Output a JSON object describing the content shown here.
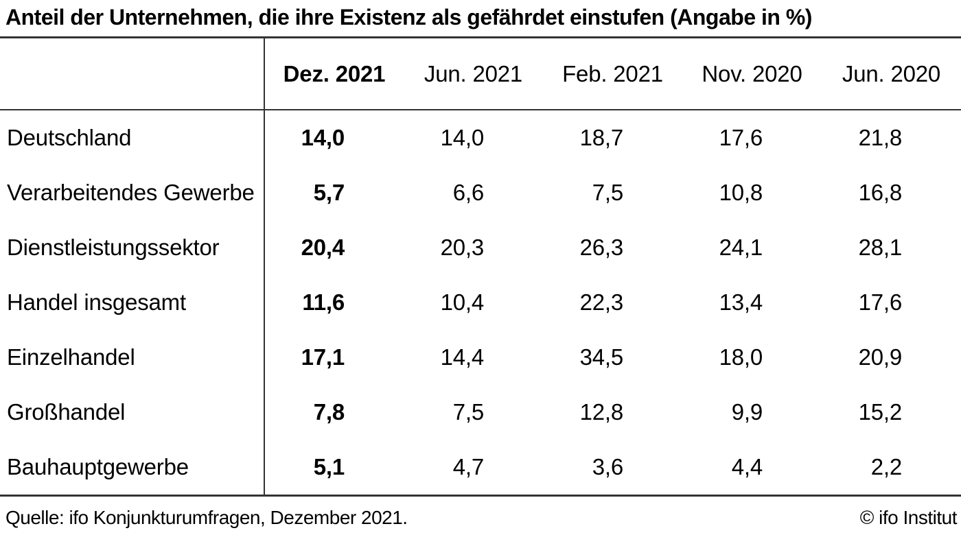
{
  "title": "Anteil der Unternehmen, die ihre Existenz als gefährdet einstufen (Angabe in %)",
  "colors": {
    "background": "#ffffff",
    "text": "#000000",
    "rule": "#333333"
  },
  "table": {
    "emphasized_column": "Dez. 2021",
    "columns": [
      "Dez. 2021",
      "Jun. 2021",
      "Feb. 2021",
      "Nov. 2020",
      "Jun. 2020"
    ],
    "rows": [
      {
        "label": "Deutschland",
        "values": [
          "14,0",
          "14,0",
          "18,7",
          "17,6",
          "21,8"
        ]
      },
      {
        "label": "Verarbeitendes Gewerbe",
        "values": [
          "5,7",
          "6,6",
          "7,5",
          "10,8",
          "16,8"
        ]
      },
      {
        "label": "Dienstleistungssektor",
        "values": [
          "20,4",
          "20,3",
          "26,3",
          "24,1",
          "28,1"
        ]
      },
      {
        "label": "Handel insgesamt",
        "values": [
          "11,6",
          "10,4",
          "22,3",
          "13,4",
          "17,6"
        ]
      },
      {
        "label": "Einzelhandel",
        "values": [
          "17,1",
          "14,4",
          "34,5",
          "18,0",
          "20,9"
        ]
      },
      {
        "label": "Großhandel",
        "values": [
          "7,8",
          "7,5",
          "12,8",
          "9,9",
          "15,2"
        ]
      },
      {
        "label": "Bauhauptgewerbe",
        "values": [
          "5,1",
          "4,7",
          "3,6",
          "4,4",
          "2,2"
        ]
      }
    ]
  },
  "footer": {
    "source": "Quelle: ifo Konjunkturumfragen, Dezember 2021.",
    "copyright": "© ifo Institut"
  },
  "chart_data": {
    "type": "table",
    "title": "Anteil der Unternehmen, die ihre Existenz als gefährdet einstufen (Angabe in %)",
    "categories": [
      "Dez. 2021",
      "Jun. 2021",
      "Feb. 2021",
      "Nov. 2020",
      "Jun. 2020"
    ],
    "series": [
      {
        "name": "Deutschland",
        "values": [
          14.0,
          14.0,
          18.7,
          17.6,
          21.8
        ]
      },
      {
        "name": "Verarbeitendes Gewerbe",
        "values": [
          5.7,
          6.6,
          7.5,
          10.8,
          16.8
        ]
      },
      {
        "name": "Dienstleistungssektor",
        "values": [
          20.4,
          20.3,
          26.3,
          24.1,
          28.1
        ]
      },
      {
        "name": "Handel insgesamt",
        "values": [
          11.6,
          10.4,
          22.3,
          13.4,
          17.6
        ]
      },
      {
        "name": "Einzelhandel",
        "values": [
          17.1,
          14.4,
          34.5,
          18.0,
          20.9
        ]
      },
      {
        "name": "Großhandel",
        "values": [
          7.8,
          7.5,
          12.8,
          9.9,
          15.2
        ]
      },
      {
        "name": "Bauhauptgewerbe",
        "values": [
          5.1,
          4.7,
          3.6,
          4.4,
          2.2
        ]
      }
    ],
    "unit": "%",
    "note": "Quelle: ifo Konjunkturumfragen, Dezember 2021.",
    "credit": "© ifo Institut"
  }
}
